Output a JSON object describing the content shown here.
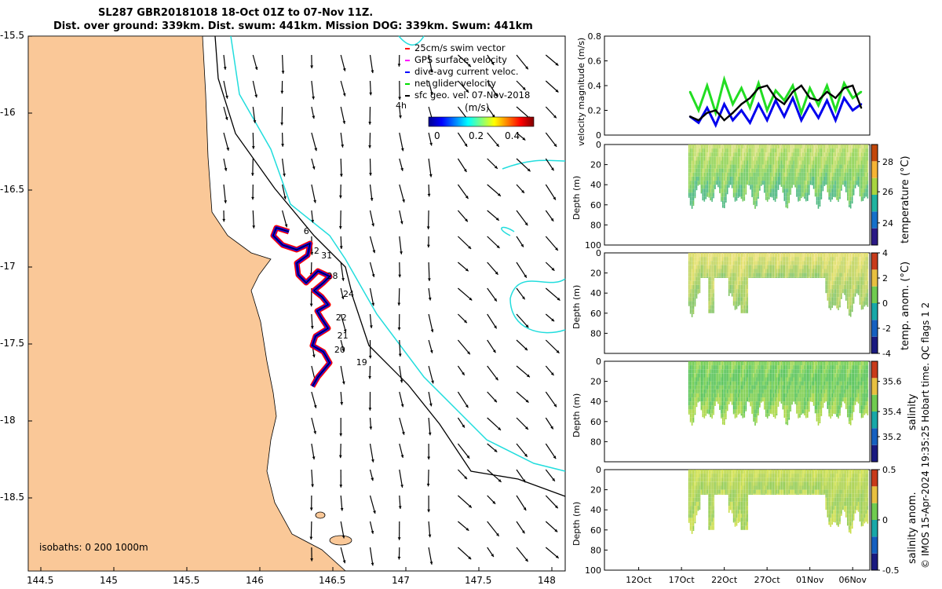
{
  "title_line1": "SL287 GBR20181018 18-Oct 01Z to 07-Nov 11Z.",
  "title_line2": "Dist. over ground: 339km. Dist. swum: 441km. Mission DOG: 339km. Swum: 441km",
  "colors": {
    "land": "#fac898",
    "isobath_200": "#000000",
    "isobath_1000": "#22dddd",
    "track_red": "#ff0000",
    "track_blue": "#0000ee",
    "net_green": "#22dd22"
  },
  "map": {
    "legend": [
      {
        "label": "25cm/s swim vector",
        "color": "#ff0000"
      },
      {
        "label": "GPS surface velocity",
        "color": "#ff00ff"
      },
      {
        "label": "dive-avg current veloc.",
        "color": "#0000ff"
      },
      {
        "label": "net glider velocity",
        "color": "#00dd00"
      },
      {
        "label": "sfc geo. vel. 07-Nov-2018",
        "color": "#000000"
      }
    ],
    "cbar_label": "(m/s)",
    "cbar_ticks": [
      "0",
      "0.2",
      "0.4"
    ],
    "time_step_label": "4h",
    "isobath_note": "isobaths: 0   200  1000m",
    "lon_ticks": [
      "144.5",
      "145",
      "145.5",
      "146",
      "146.5",
      "147",
      "147.5",
      "148"
    ],
    "lat_ticks": [
      "-15.5",
      "-16",
      "-16.5",
      "-17",
      "-17.5",
      "-18",
      "-18.5"
    ],
    "day_labels": [
      {
        "label": "6",
        "lon": 146.3,
        "lat": -16.77
      },
      {
        "label": "2",
        "lon": 146.37,
        "lat": -16.9
      },
      {
        "label": "31",
        "lon": 146.42,
        "lat": -16.93
      },
      {
        "label": "28",
        "lon": 146.46,
        "lat": -17.06
      },
      {
        "label": "24",
        "lon": 146.57,
        "lat": -17.18
      },
      {
        "label": "22",
        "lon": 146.52,
        "lat": -17.33
      },
      {
        "label": "21",
        "lon": 146.53,
        "lat": -17.45
      },
      {
        "label": "20",
        "lon": 146.51,
        "lat": -17.54
      },
      {
        "label": "19",
        "lon": 146.66,
        "lat": -17.62
      }
    ]
  },
  "chart_data": [
    {
      "type": "line",
      "title": "",
      "ylabel": "velocity magnitude (m/s)",
      "ylim": [
        0,
        0.8
      ],
      "yticks": [
        "0",
        "0.2",
        "0.4",
        "0.6",
        "0.8"
      ],
      "xlim_days_since_8oct": [
        0,
        31
      ],
      "series": [
        {
          "name": "net glider velocity",
          "color": "#22dd22",
          "x": [
            10,
            11,
            12,
            13,
            14,
            15,
            16,
            17,
            18,
            19,
            20,
            21,
            22,
            23,
            24,
            25,
            26,
            27,
            28,
            29,
            30
          ],
          "values": [
            0.35,
            0.2,
            0.4,
            0.18,
            0.45,
            0.25,
            0.38,
            0.22,
            0.42,
            0.2,
            0.36,
            0.28,
            0.4,
            0.18,
            0.38,
            0.24,
            0.4,
            0.2,
            0.42,
            0.3,
            0.35
          ]
        },
        {
          "name": "dive-avg current veloc.",
          "color": "#0000ee",
          "x": [
            10,
            11,
            12,
            13,
            14,
            15,
            16,
            17,
            18,
            19,
            20,
            21,
            22,
            23,
            24,
            25,
            26,
            27,
            28,
            29,
            30
          ],
          "values": [
            0.15,
            0.1,
            0.22,
            0.08,
            0.25,
            0.12,
            0.2,
            0.1,
            0.25,
            0.12,
            0.28,
            0.15,
            0.3,
            0.12,
            0.25,
            0.14,
            0.28,
            0.12,
            0.3,
            0.2,
            0.25
          ]
        },
        {
          "name": "sfc geo. vel.",
          "color": "#000000",
          "x": [
            10,
            11,
            12,
            13,
            14,
            15,
            16,
            17,
            18,
            19,
            20,
            21,
            22,
            23,
            24,
            25,
            26,
            27,
            28,
            29,
            30
          ],
          "values": [
            0.15,
            0.12,
            0.18,
            0.2,
            0.12,
            0.18,
            0.25,
            0.3,
            0.38,
            0.4,
            0.3,
            0.25,
            0.35,
            0.4,
            0.3,
            0.28,
            0.35,
            0.3,
            0.38,
            0.4,
            0.22
          ]
        }
      ]
    },
    {
      "type": "heatmap",
      "ylabel": "Depth (m)",
      "ylim": [
        0,
        100
      ],
      "yticks": [
        "0",
        "20",
        "40",
        "60",
        "80",
        "100"
      ],
      "cbar_label": "temperature (°C)",
      "cbar_ticks": [
        "24",
        "26",
        "28"
      ]
    },
    {
      "type": "heatmap",
      "ylabel": "Depth (m)",
      "ylim": [
        0,
        100
      ],
      "yticks": [
        "0",
        "20",
        "40",
        "60",
        "80"
      ],
      "cbar_label": "temp. anom. (°C)",
      "cbar_ticks": [
        "-4",
        "-2",
        "0",
        "2",
        "4"
      ]
    },
    {
      "type": "heatmap",
      "ylabel": "Depth (m)",
      "ylim": [
        0,
        100
      ],
      "yticks": [
        "0",
        "20",
        "40",
        "60",
        "80"
      ],
      "cbar_label": "salinity",
      "cbar_ticks": [
        "35.2",
        "35.4",
        "35.6"
      ]
    },
    {
      "type": "heatmap",
      "ylabel": "Depth (m)",
      "ylim": [
        0,
        100
      ],
      "yticks": [
        "0",
        "20",
        "40",
        "60",
        "80",
        "100"
      ],
      "cbar_label": "salinity anom.",
      "cbar_ticks": [
        "-0.5",
        "0",
        "0.5"
      ]
    }
  ],
  "time_ticks": [
    "12Oct",
    "17Oct",
    "22Oct",
    "27Oct",
    "01Nov",
    "06Nov"
  ],
  "footer": "© IMOS 15-Apr-2024 19:35:25 Hobart time. QC flags 1  2"
}
